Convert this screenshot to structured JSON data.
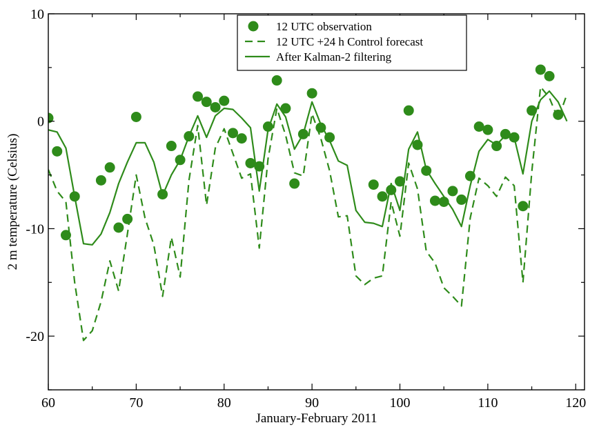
{
  "chart_data": {
    "type": "line",
    "title": "",
    "xlabel": "January-February 2011",
    "ylabel": "2 m temperature (Celsius)",
    "xlim": [
      60,
      121
    ],
    "ylim": [
      -25,
      10
    ],
    "x_ticks": [
      60,
      70,
      80,
      90,
      100,
      110,
      120
    ],
    "y_ticks": [
      -20,
      -10,
      0,
      10
    ],
    "grid": false,
    "legend_position": "top-center",
    "colors": {
      "series": "#2e8b1a"
    },
    "legend": [
      "12 UTC observation",
      "12 UTC +24 h Control forecast",
      "After Kalman-2 filtering"
    ],
    "series": [
      {
        "name": "12 UTC observation",
        "style": "markers",
        "x": [
          60,
          61,
          62,
          63,
          66,
          67,
          68,
          69,
          70,
          73,
          74,
          75,
          76,
          77,
          78,
          79,
          80,
          81,
          82,
          83,
          84,
          85,
          86,
          87,
          88,
          89,
          90,
          91,
          92,
          97,
          98,
          99,
          100,
          101,
          102,
          103,
          104,
          105,
          106,
          107,
          108,
          109,
          110,
          111,
          112,
          113,
          114,
          115,
          116,
          117,
          118
        ],
        "y": [
          0.3,
          -2.8,
          -10.6,
          -7.0,
          -5.5,
          -4.3,
          -9.9,
          -9.1,
          0.4,
          -6.8,
          -2.3,
          -3.6,
          -1.4,
          2.3,
          1.8,
          1.3,
          1.9,
          -1.1,
          -1.6,
          -3.9,
          -4.2,
          -0.5,
          3.8,
          1.2,
          -5.8,
          -1.2,
          2.6,
          -0.6,
          -1.5,
          -5.9,
          -7.0,
          -6.4,
          -5.6,
          1.0,
          -2.2,
          -4.6,
          -7.4,
          -7.5,
          -6.5,
          -7.3,
          -5.1,
          -0.5,
          -0.8,
          -2.3,
          -1.2,
          -1.5,
          -7.9,
          1.0,
          4.8,
          4.2,
          0.6
        ]
      },
      {
        "name": "12 UTC +24 h Control forecast",
        "style": "dashed",
        "x": [
          60,
          61,
          62,
          63,
          64,
          65,
          66,
          67,
          68,
          69,
          70,
          71,
          72,
          73,
          74,
          75,
          76,
          77,
          78,
          79,
          80,
          81,
          82,
          83,
          84,
          85,
          86,
          87,
          88,
          89,
          90,
          91,
          92,
          93,
          94,
          95,
          96,
          97,
          98,
          99,
          100,
          101,
          102,
          103,
          104,
          105,
          106,
          107,
          108,
          109,
          110,
          111,
          112,
          113,
          114,
          115,
          116,
          117,
          118,
          119
        ],
        "y": [
          -4.5,
          -6.5,
          -7.5,
          -15.0,
          -20.4,
          -19.5,
          -16.8,
          -13.0,
          -15.8,
          -10.5,
          -5.0,
          -9.0,
          -11.5,
          -16.3,
          -10.8,
          -14.5,
          -5.5,
          -0.4,
          -7.8,
          -2.5,
          -0.7,
          -3.0,
          -5.3,
          -4.9,
          -11.8,
          -3.5,
          1.2,
          -1.3,
          -4.8,
          -5.1,
          0.7,
          -1.6,
          -4.6,
          -8.9,
          -8.8,
          -14.4,
          -15.2,
          -14.6,
          -14.4,
          -7.5,
          -10.7,
          -3.9,
          -6.3,
          -12.1,
          -13.2,
          -15.5,
          -16.3,
          -17.2,
          -9.0,
          -5.3,
          -6.0,
          -7.0,
          -5.2,
          -6.0,
          -15.0,
          -4.7,
          3.2,
          2.2,
          0.2,
          2.5
        ]
      },
      {
        "name": "After Kalman-2 filtering",
        "style": "solid",
        "x": [
          60,
          61,
          62,
          63,
          64,
          65,
          66,
          67,
          68,
          69,
          70,
          71,
          72,
          73,
          74,
          75,
          76,
          77,
          78,
          79,
          80,
          81,
          82,
          83,
          84,
          85,
          86,
          87,
          88,
          89,
          90,
          91,
          92,
          93,
          94,
          95,
          96,
          97,
          98,
          99,
          100,
          101,
          102,
          103,
          104,
          105,
          106,
          107,
          108,
          109,
          110,
          111,
          112,
          113,
          114,
          115,
          116,
          117,
          118,
          119
        ],
        "y": [
          -0.8,
          -1.0,
          -2.5,
          -7.0,
          -11.4,
          -11.5,
          -10.5,
          -8.5,
          -5.8,
          -3.8,
          -2.0,
          -2.0,
          -3.8,
          -6.9,
          -5.0,
          -3.6,
          -1.4,
          0.5,
          -1.5,
          0.5,
          1.2,
          1.1,
          0.3,
          -0.6,
          -6.5,
          -0.8,
          1.6,
          0.4,
          -2.6,
          -1.2,
          1.8,
          -0.3,
          -1.8,
          -3.7,
          -4.1,
          -8.3,
          -9.4,
          -9.5,
          -9.8,
          -5.8,
          -8.3,
          -2.6,
          -1.0,
          -4.5,
          -5.8,
          -7.0,
          -8.2,
          -9.8,
          -6.0,
          -2.8,
          -1.7,
          -2.2,
          -1.3,
          -1.5,
          -4.9,
          0.0,
          2.0,
          2.8,
          1.8,
          0.0
        ]
      }
    ]
  }
}
